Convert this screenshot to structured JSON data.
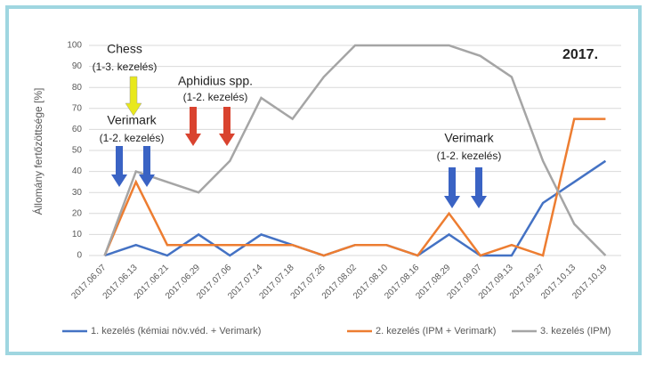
{
  "chart_data": {
    "type": "line",
    "title": "2017.",
    "y_label": "Állomány fertőzöttsége [%]",
    "annotations": [
      "Chess",
      "(1-3. kezelés)",
      "Aphidius spp.",
      "(1-2. kezelés)",
      "Verimark",
      "(1-2. kezelés)",
      "Verimark",
      "(1-2. kezelés)"
    ],
    "categories": [
      "2017.06.07",
      "2017.06.13",
      "2017.06.21",
      "2017.06.29",
      "2017.07.06",
      "2017.07.14",
      "2017.07.18",
      "2017.07.26",
      "2017.08.02",
      "2017.08.10",
      "2017.08.16",
      "2017.08.29",
      "2017.09.07",
      "2017.09.13",
      "2017.09.27",
      "2017.10.13",
      "2017.10.19"
    ],
    "series": [
      {
        "name": "1. kezelés (kémiai növ.véd. + Verimark)",
        "color": "#4472c4",
        "values": [
          0,
          5,
          0,
          10,
          0,
          10,
          5,
          0,
          5,
          5,
          0,
          10,
          0,
          0,
          25,
          35,
          45
        ]
      },
      {
        "name": "2. kezelés (IPM + Verimark)",
        "color": "#ed7d31",
        "values": [
          0,
          35,
          5,
          5,
          5,
          5,
          5,
          0,
          5,
          5,
          0,
          20,
          0,
          5,
          0,
          65,
          65
        ]
      },
      {
        "name": "3. kezelés (IPM)",
        "color": "#a5a5a5",
        "values": [
          0,
          40,
          35,
          30,
          45,
          75,
          65,
          85,
          100,
          100,
          100,
          100,
          95,
          85,
          45,
          15,
          0
        ]
      }
    ],
    "ylim": [
      0,
      100
    ],
    "yticks": [
      0,
      10,
      20,
      30,
      40,
      50,
      60,
      70,
      80,
      90,
      100
    ],
    "grid": true
  }
}
